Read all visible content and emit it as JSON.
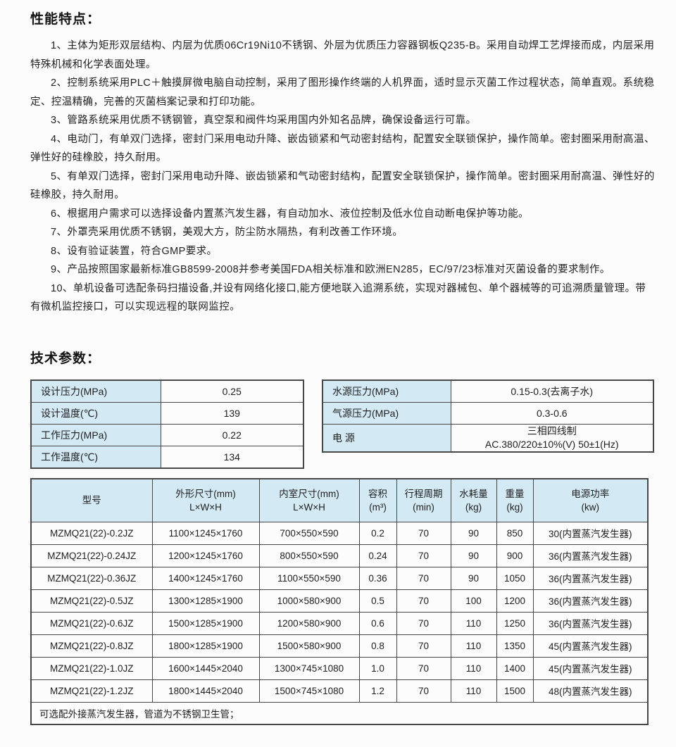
{
  "headings": {
    "features": "性能特点：",
    "specs": "技术参数："
  },
  "features": [
    "1、主体为矩形双层结构、内层为优质06Cr19Ni10不锈钢、外层为优质压力容器钢板Q235-B。采用自动焊工艺焊接而成，内层采用特殊机械和化学表面处理。",
    "2、控制系统采用PLC＋触摸屏微电脑自动控制，采用了图形操作终端的人机界面，适时显示灭菌工作过程状态，简单直观。系统稳定、控温精确，完善的灭菌档案记录和打印功能。",
    "3、管路系统采用优质不锈钢管，真空泵和阀件均采用国内外知名品牌，确保设备运行可靠。",
    "4、电动门，有单双门选择，密封门采用电动升降、嵌齿锁紧和气动密封结构，配置安全联锁保护，操作简单。密封圈采用耐高温、弹性好的硅橡胶，持久耐用。",
    "5、有单双门选择，密封门采用电动升降、嵌齿锁紧和气动密封结构，配置安全联锁保护，操作简单。密封圈采用耐高温、弹性好的硅橡胶，持久耐用。",
    "6、根据用户需求可以选择设备内置蒸汽发生器，有自动加水、液位控制及低水位自动断电保护等功能。",
    "7、外罩壳采用优质不锈钢，美观大方，防尘防水隔热，有利改善工作环境。",
    "8、设有验证装置，符合GMP要求。",
    "9、产品按照国家最新标准GB8599-2008并参考美国FDA相关标准和欧洲EN285，EC/97/23标准对灭菌设备的要求制作。",
    "10、单机设备可选配条码扫描设备,并设有网络化接口,能方便地联入追溯系统，实现对器械包、单个器械等的可追溯质量管理。带有微机监控接口，可以实现远程的联网监控。"
  ],
  "left_table": {
    "rows": [
      {
        "label": "设计压力(MPa)",
        "value": "0.25"
      },
      {
        "label": "设计温度(℃)",
        "value": "139"
      },
      {
        "label": "工作压力(MPa)",
        "value": "0.22"
      },
      {
        "label": "工作温度(℃)",
        "value": "134"
      }
    ]
  },
  "right_table": {
    "rows": [
      {
        "label": "水源压力(MPa)",
        "value": "0.15-0.3(去离子水)"
      },
      {
        "label": "气源压力(MPa)",
        "value": "0.3-0.6"
      },
      {
        "label": "电  源",
        "value": "三相四线制\nAC.380/220±10%(V) 50±1(Hz)"
      }
    ]
  },
  "main_table": {
    "headers": [
      "型号",
      "外形尺寸(mm)\nL×W×H",
      "内室尺寸(mm)\nL×W×H",
      "容积\n(m³)",
      "行程周期\n(min)",
      "水耗量\n(kg)",
      "重量\n(kg)",
      "电源功率\n(kw)"
    ],
    "rows": [
      [
        "MZMQ21(22)-0.2JZ",
        "1100×1245×1760",
        "700×550×590",
        "0.2",
        "70",
        "90",
        "850",
        "30(内置蒸汽发生器)"
      ],
      [
        "MZMQ21(22)-0.24JZ",
        "1200×1245×1760",
        "800×550×590",
        "0.24",
        "70",
        "90",
        "900",
        "36(内置蒸汽发生器)"
      ],
      [
        "MZMQ21(22)-0.36JZ",
        "1400×1245×1760",
        "1100×550×590",
        "0.36",
        "70",
        "90",
        "1050",
        "36(内置蒸汽发生器)"
      ],
      [
        "MZMQ21(22)-0.5JZ",
        "1300×1285×1900",
        "1000×580×900",
        "0.5",
        "70",
        "100",
        "1200",
        "36(内置蒸汽发生器)"
      ],
      [
        "MZMQ21(22)-0.6JZ",
        "1500×1285×1900",
        "1200×580×900",
        "0.6",
        "70",
        "110",
        "1250",
        "36(内置蒸汽发生器)"
      ],
      [
        "MZMQ21(22)-0.8JZ",
        "1800×1285×1900",
        "1500×580×900",
        "0.8",
        "70",
        "110",
        "1350",
        "45(内置蒸汽发生器)"
      ],
      [
        "MZMQ21(22)-1.0JZ",
        "1600×1445×2040",
        "1300×745×1080",
        "1.0",
        "70",
        "110",
        "1400",
        "45(内置蒸汽发生器)"
      ],
      [
        "MZMQ21(22)-1.2JZ",
        "1800×1445×2040",
        "1500×745×1080",
        "1.2",
        "70",
        "110",
        "1500",
        "48(内置蒸汽发生器)"
      ]
    ],
    "footer": "可选配外接蒸汽发生器，管道为不锈钢卫生管；"
  },
  "colors": {
    "cell_blue": "#d3e9f4",
    "border": "#474747",
    "text": "#1e1e1e"
  }
}
